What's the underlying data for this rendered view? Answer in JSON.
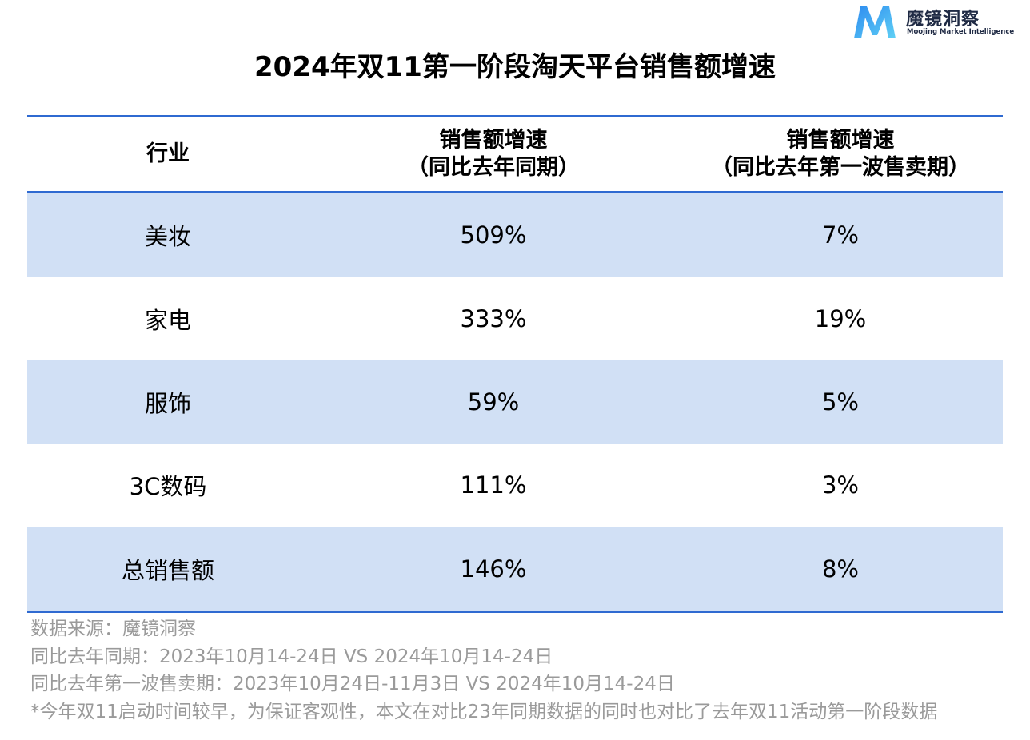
{
  "brand": {
    "name_cn": "魔镜洞察",
    "name_en": "Moojing Market Intelligence",
    "logo_icon": "m-letter-logo-icon",
    "colors": {
      "logo_gradient_start": "#2e8cf0",
      "logo_gradient_end": "#5fd0f5"
    }
  },
  "chart_data": {
    "type": "table",
    "title": "2024年双11第一阶段淘天平台销售额增速",
    "columns": [
      {
        "line1": "行业",
        "line2": ""
      },
      {
        "line1": "销售额增速",
        "line2": "（同比去年同期）"
      },
      {
        "line1": "销售额增速",
        "line2": "（同比去年第一波售卖期）"
      }
    ],
    "rows": [
      {
        "industry": "美妆",
        "yoy": "509%",
        "vs_first_wave": "7%"
      },
      {
        "industry": "家电",
        "yoy": "333%",
        "vs_first_wave": "19%"
      },
      {
        "industry": "服饰",
        "yoy": "59%",
        "vs_first_wave": "5%"
      },
      {
        "industry": "3C数码",
        "yoy": "111%",
        "vs_first_wave": "3%"
      },
      {
        "industry": "总销售额",
        "yoy": "146%",
        "vs_first_wave": "8%"
      }
    ],
    "colors": {
      "rule": "#2f6ad1",
      "shaded_row": "#d1e0f5"
    }
  },
  "notes": [
    "数据来源：魔镜洞察",
    "同比去年同期：2023年10月14-24日 VS 2024年10月14-24日",
    "同比去年第一波售卖期：2023年10月24日-11月3日 VS 2024年10月14-24日",
    "*今年双11启动时间较早，为保证客观性，本文在对比23年同期数据的同时也对比了去年双11活动第一阶段数据"
  ]
}
